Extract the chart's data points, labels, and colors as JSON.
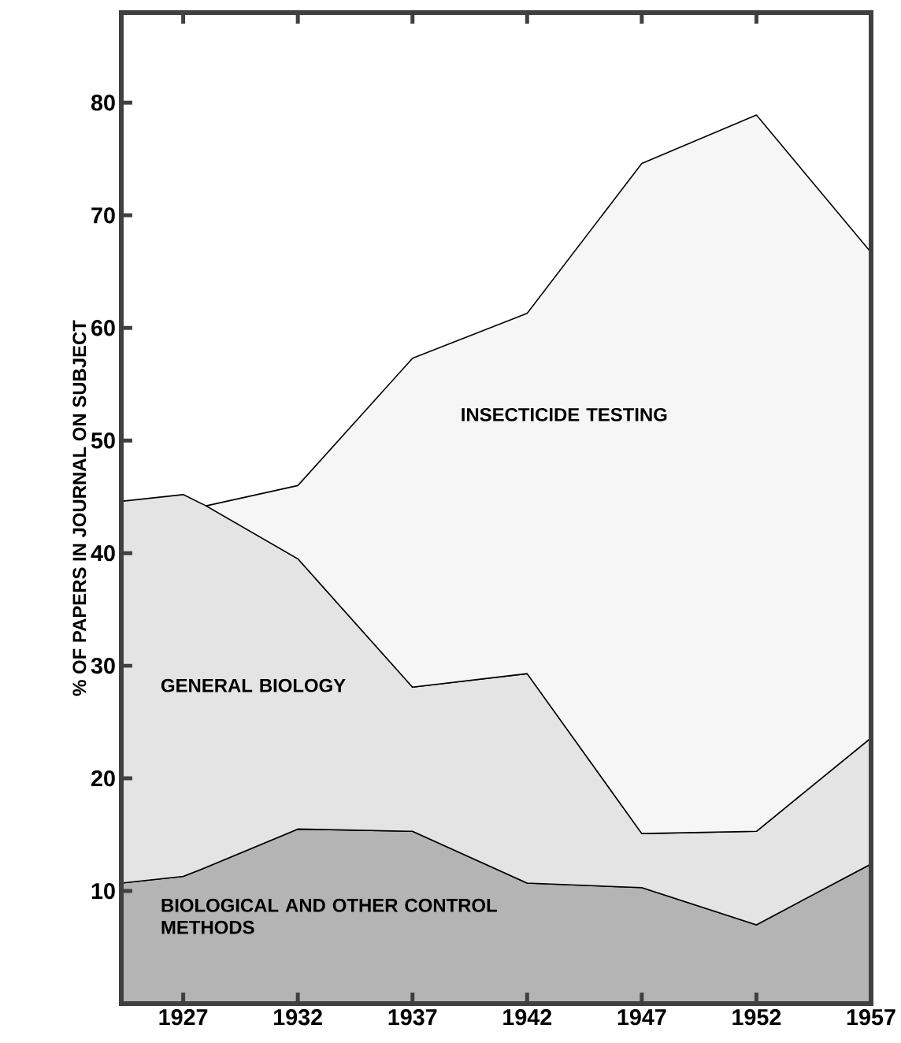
{
  "chart_data": {
    "type": "area",
    "stacked": true,
    "ylabel": "% OF PAPERS IN JOURNAL ON SUBJECT",
    "x": [
      1924.3,
      1927,
      1928,
      1932,
      1937,
      1942,
      1947,
      1952,
      1957
    ],
    "xlim": [
      1924.3,
      1957
    ],
    "xticks": [
      1927,
      1932,
      1937,
      1942,
      1947,
      1952,
      1957
    ],
    "ylim": [
      0,
      88
    ],
    "yticks": [
      10,
      20,
      30,
      40,
      50,
      60,
      70,
      80
    ],
    "series": [
      {
        "name": "BIOLOGICAL AND OTHER CONTROL METHODS",
        "color": "#b4b4b4",
        "values": [
          10.7,
          11.3,
          12.1,
          15.5,
          15.3,
          10.7,
          10.3,
          7.0,
          12.4
        ]
      },
      {
        "name": "GENERAL BIOLOGY",
        "color": "#e4e4e4",
        "values": [
          33.9,
          33.9,
          32.1,
          24.0,
          12.8,
          18.6,
          4.8,
          8.3,
          11.2
        ]
      },
      {
        "name": "INSECTICIDE TESTING",
        "color": "#f6f6f6",
        "values": [
          null,
          null,
          0,
          6.5,
          29.2,
          32.0,
          59.5,
          63.6,
          43.1
        ]
      }
    ]
  }
}
